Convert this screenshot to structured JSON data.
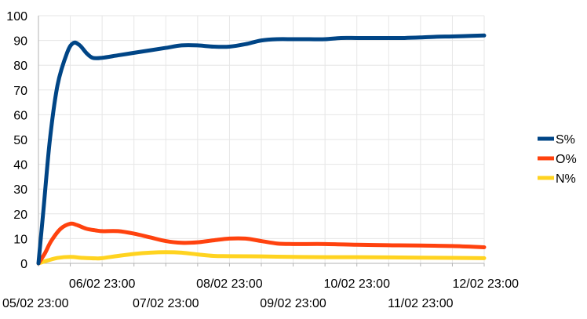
{
  "chart_data": {
    "type": "line",
    "x": [
      "05/02 23:00",
      "06/02 23:00",
      "07/02 23:00",
      "08/02 23:00",
      "09/02 23:00",
      "10/02 23:00",
      "11/02 23:00",
      "12/02 23:00"
    ],
    "series": [
      {
        "name": "S%",
        "color": "#004586",
        "points": [
          [
            0,
            0
          ],
          [
            0.08,
            22
          ],
          [
            0.18,
            50
          ],
          [
            0.3,
            72
          ],
          [
            0.45,
            85
          ],
          [
            0.55,
            89
          ],
          [
            0.65,
            88
          ],
          [
            0.75,
            85
          ],
          [
            0.85,
            83
          ],
          [
            1.0,
            83
          ],
          [
            1.25,
            84
          ],
          [
            1.5,
            85
          ],
          [
            1.75,
            86
          ],
          [
            2.0,
            87
          ],
          [
            2.25,
            88
          ],
          [
            2.5,
            88
          ],
          [
            2.75,
            87.5
          ],
          [
            3.0,
            87.5
          ],
          [
            3.25,
            88.5
          ],
          [
            3.5,
            90
          ],
          [
            3.75,
            90.5
          ],
          [
            4.0,
            90.5
          ],
          [
            4.25,
            90.5
          ],
          [
            4.5,
            90.5
          ],
          [
            4.75,
            91
          ],
          [
            5.0,
            91
          ],
          [
            5.25,
            91
          ],
          [
            5.5,
            91
          ],
          [
            5.75,
            91
          ],
          [
            6.0,
            91.2
          ],
          [
            6.25,
            91.5
          ],
          [
            6.5,
            91.6
          ],
          [
            6.75,
            91.8
          ],
          [
            7.0,
            92
          ]
        ]
      },
      {
        "name": "O%",
        "color": "#ff420e",
        "points": [
          [
            0,
            0
          ],
          [
            0.1,
            4
          ],
          [
            0.2,
            9
          ],
          [
            0.35,
            14
          ],
          [
            0.5,
            16
          ],
          [
            0.6,
            15.5
          ],
          [
            0.75,
            14
          ],
          [
            0.9,
            13.3
          ],
          [
            1.0,
            13
          ],
          [
            1.25,
            13
          ],
          [
            1.5,
            12
          ],
          [
            1.75,
            10.5
          ],
          [
            2.0,
            9
          ],
          [
            2.25,
            8.3
          ],
          [
            2.5,
            8.5
          ],
          [
            2.75,
            9.3
          ],
          [
            3.0,
            10
          ],
          [
            3.25,
            10
          ],
          [
            3.5,
            9
          ],
          [
            3.75,
            8
          ],
          [
            4.0,
            7.8
          ],
          [
            4.5,
            7.8
          ],
          [
            5.0,
            7.5
          ],
          [
            5.5,
            7.3
          ],
          [
            6.0,
            7.2
          ],
          [
            6.5,
            7
          ],
          [
            7.0,
            6.5
          ]
        ]
      },
      {
        "name": "N%",
        "color": "#ffd320",
        "points": [
          [
            0,
            0
          ],
          [
            0.15,
            1.2
          ],
          [
            0.3,
            2.2
          ],
          [
            0.5,
            2.6
          ],
          [
            0.7,
            2.2
          ],
          [
            0.9,
            2.0
          ],
          [
            1.0,
            2.1
          ],
          [
            1.25,
            3.0
          ],
          [
            1.5,
            3.8
          ],
          [
            1.75,
            4.3
          ],
          [
            2.0,
            4.5
          ],
          [
            2.25,
            4.3
          ],
          [
            2.5,
            3.6
          ],
          [
            2.75,
            3
          ],
          [
            3.0,
            2.9
          ],
          [
            3.5,
            2.8
          ],
          [
            4.0,
            2.6
          ],
          [
            4.5,
            2.5
          ],
          [
            5.0,
            2.5
          ],
          [
            5.5,
            2.4
          ],
          [
            6.0,
            2.3
          ],
          [
            6.5,
            2.2
          ],
          [
            7.0,
            2.1
          ]
        ]
      }
    ],
    "yticks": [
      "0",
      "10",
      "20",
      "30",
      "40",
      "50",
      "60",
      "70",
      "80",
      "90",
      "100"
    ],
    "ylim": [
      0,
      100
    ],
    "grid": true,
    "legend": "right"
  }
}
